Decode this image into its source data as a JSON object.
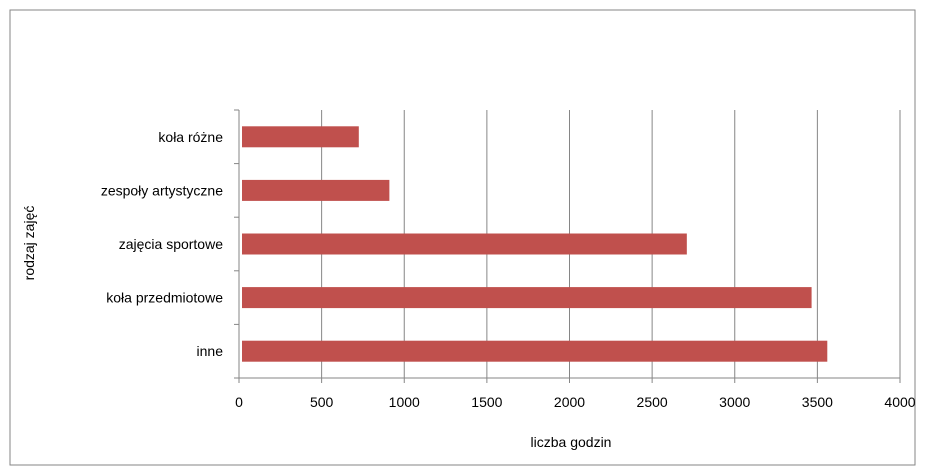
{
  "chart_data": {
    "type": "bar",
    "orientation": "horizontal",
    "categories": [
      "koła różne",
      "zespoły artystyczne",
      "zajęcia sportowe",
      "koła przedmiotowe",
      "inne"
    ],
    "values": [
      725,
      910,
      2710,
      3465,
      3560
    ],
    "xlabel": "liczba godzin",
    "ylabel": "rodzaj zajęć",
    "xlim": [
      0,
      4000
    ],
    "xticks": [
      0,
      500,
      1000,
      1500,
      2000,
      2500,
      3000,
      3500,
      4000
    ],
    "grid": "vertical",
    "legend": "none",
    "bar_color": "#c0504d",
    "grid_color": "#868686"
  }
}
